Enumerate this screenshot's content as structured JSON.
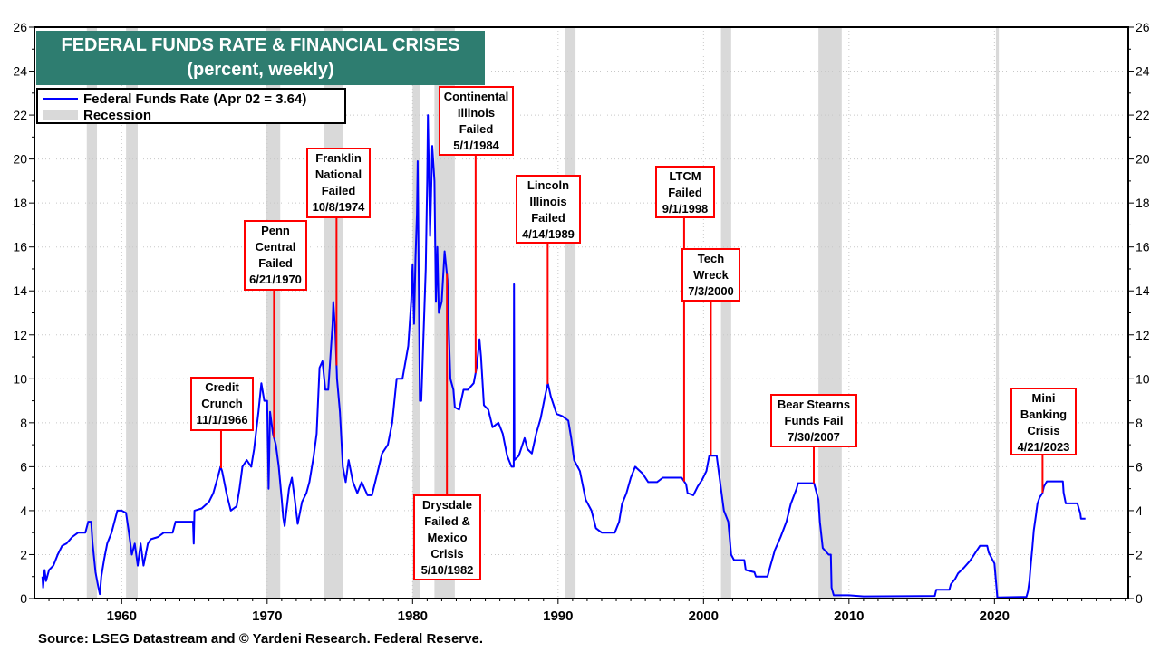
{
  "title": "FEDERAL FUNDS RATE & FINANCIAL CRISES",
  "subtitle": "(percent, weekly)",
  "legend": {
    "series_label": "Federal Funds Rate (Apr 02 = 3.64)",
    "recession_label": "Recession"
  },
  "source": "Source: LSEG Datastream and © Yardeni Research. Federal Reserve.",
  "colors": {
    "series": "#0000ff",
    "recession": "#d9d9d9",
    "title_bg": "#2e7d70",
    "annotation": "#ff0000"
  },
  "chart_data": {
    "type": "line",
    "title": "FEDERAL FUNDS RATE & FINANCIAL CRISES",
    "subtitle": "(percent, weekly)",
    "xlabel": "",
    "ylabel": "",
    "xlim": [
      1954,
      2029.2
    ],
    "ylim": [
      0,
      26
    ],
    "grid": true,
    "legend_position": "top-left",
    "x_ticks": [
      1960,
      1970,
      1980,
      1990,
      2000,
      2010,
      2020
    ],
    "y_ticks": [
      0,
      2,
      4,
      6,
      8,
      10,
      12,
      14,
      16,
      18,
      20,
      22,
      24,
      26
    ],
    "recessions": [
      [
        1957.6,
        1958.3
      ],
      [
        1960.3,
        1961.1
      ],
      [
        1969.9,
        1970.9
      ],
      [
        1973.9,
        1975.2
      ],
      [
        1980.0,
        1980.5
      ],
      [
        1981.5,
        1982.9
      ],
      [
        1990.5,
        1991.2
      ],
      [
        2001.2,
        2001.9
      ],
      [
        2007.9,
        2009.5
      ],
      [
        2020.1,
        2020.3
      ]
    ],
    "series": [
      {
        "name": "Federal Funds Rate (Apr 02 = 3.64)",
        "points": [
          [
            1954.55,
            1.0
          ],
          [
            1954.6,
            0.5
          ],
          [
            1954.7,
            1.3
          ],
          [
            1954.8,
            0.8
          ],
          [
            1955.0,
            1.3
          ],
          [
            1955.3,
            1.5
          ],
          [
            1955.6,
            2.0
          ],
          [
            1955.9,
            2.4
          ],
          [
            1956.2,
            2.5
          ],
          [
            1956.6,
            2.8
          ],
          [
            1957.0,
            3.0
          ],
          [
            1957.5,
            3.0
          ],
          [
            1957.7,
            3.5
          ],
          [
            1957.9,
            3.5
          ],
          [
            1958.0,
            2.5
          ],
          [
            1958.2,
            1.2
          ],
          [
            1958.4,
            0.5
          ],
          [
            1958.5,
            0.2
          ],
          [
            1958.6,
            1.0
          ],
          [
            1958.8,
            1.8
          ],
          [
            1959.0,
            2.5
          ],
          [
            1959.3,
            3.0
          ],
          [
            1959.5,
            3.5
          ],
          [
            1959.7,
            4.0
          ],
          [
            1960.0,
            4.0
          ],
          [
            1960.3,
            3.9
          ],
          [
            1960.5,
            3.0
          ],
          [
            1960.7,
            2.0
          ],
          [
            1960.9,
            2.5
          ],
          [
            1961.1,
            1.5
          ],
          [
            1961.3,
            2.5
          ],
          [
            1961.5,
            1.5
          ],
          [
            1961.8,
            2.5
          ],
          [
            1962.0,
            2.7
          ],
          [
            1962.5,
            2.8
          ],
          [
            1962.9,
            3.0
          ],
          [
            1963.5,
            3.0
          ],
          [
            1963.7,
            3.5
          ],
          [
            1964.5,
            3.5
          ],
          [
            1964.9,
            3.5
          ],
          [
            1964.95,
            2.5
          ],
          [
            1965.0,
            4.0
          ],
          [
            1965.5,
            4.1
          ],
          [
            1966.0,
            4.4
          ],
          [
            1966.3,
            4.8
          ],
          [
            1966.6,
            5.5
          ],
          [
            1966.8,
            6.0
          ],
          [
            1966.9,
            5.8
          ],
          [
            1967.2,
            4.8
          ],
          [
            1967.5,
            4.0
          ],
          [
            1967.9,
            4.2
          ],
          [
            1968.1,
            5.0
          ],
          [
            1968.3,
            6.0
          ],
          [
            1968.6,
            6.3
          ],
          [
            1968.9,
            6.0
          ],
          [
            1969.1,
            6.8
          ],
          [
            1969.4,
            8.5
          ],
          [
            1969.6,
            9.8
          ],
          [
            1969.8,
            9.0
          ],
          [
            1970.0,
            9.0
          ],
          [
            1970.1,
            5.0
          ],
          [
            1970.2,
            8.5
          ],
          [
            1970.4,
            7.5
          ],
          [
            1970.6,
            7.0
          ],
          [
            1970.8,
            6.0
          ],
          [
            1971.0,
            4.5
          ],
          [
            1971.1,
            3.7
          ],
          [
            1971.2,
            3.3
          ],
          [
            1971.5,
            5.0
          ],
          [
            1971.7,
            5.5
          ],
          [
            1971.9,
            4.5
          ],
          [
            1972.1,
            3.4
          ],
          [
            1972.4,
            4.4
          ],
          [
            1972.7,
            4.8
          ],
          [
            1972.9,
            5.3
          ],
          [
            1973.2,
            6.5
          ],
          [
            1973.4,
            7.5
          ],
          [
            1973.6,
            10.5
          ],
          [
            1973.8,
            10.8
          ],
          [
            1974.0,
            9.5
          ],
          [
            1974.2,
            9.5
          ],
          [
            1974.4,
            11.5
          ],
          [
            1974.5,
            12.5
          ],
          [
            1974.55,
            13.5
          ],
          [
            1974.7,
            12.0
          ],
          [
            1974.8,
            10.0
          ],
          [
            1975.0,
            8.5
          ],
          [
            1975.2,
            6.0
          ],
          [
            1975.4,
            5.3
          ],
          [
            1975.6,
            6.3
          ],
          [
            1975.9,
            5.3
          ],
          [
            1976.2,
            4.8
          ],
          [
            1976.5,
            5.3
          ],
          [
            1976.9,
            4.7
          ],
          [
            1977.2,
            4.7
          ],
          [
            1977.5,
            5.5
          ],
          [
            1977.9,
            6.6
          ],
          [
            1978.3,
            7.0
          ],
          [
            1978.6,
            8.0
          ],
          [
            1978.9,
            10.0
          ],
          [
            1979.3,
            10.0
          ],
          [
            1979.7,
            11.5
          ],
          [
            1979.9,
            13.5
          ],
          [
            1980.0,
            15.2
          ],
          [
            1980.1,
            12.5
          ],
          [
            1980.2,
            15.5
          ],
          [
            1980.3,
            17.5
          ],
          [
            1980.35,
            19.9
          ],
          [
            1980.5,
            9.0
          ],
          [
            1980.6,
            9.0
          ],
          [
            1980.9,
            15.0
          ],
          [
            1981.0,
            19.0
          ],
          [
            1981.05,
            22.0
          ],
          [
            1981.2,
            16.5
          ],
          [
            1981.35,
            20.6
          ],
          [
            1981.5,
            19.0
          ],
          [
            1981.6,
            13.5
          ],
          [
            1981.7,
            16.0
          ],
          [
            1981.8,
            13.0
          ],
          [
            1982.0,
            13.5
          ],
          [
            1982.2,
            15.8
          ],
          [
            1982.4,
            14.5
          ],
          [
            1982.5,
            12.0
          ],
          [
            1982.6,
            10.0
          ],
          [
            1982.8,
            9.5
          ],
          [
            1982.9,
            8.7
          ],
          [
            1983.2,
            8.6
          ],
          [
            1983.5,
            9.5
          ],
          [
            1983.8,
            9.5
          ],
          [
            1984.2,
            9.8
          ],
          [
            1984.4,
            10.5
          ],
          [
            1984.6,
            11.8
          ],
          [
            1984.7,
            11.0
          ],
          [
            1984.9,
            8.8
          ],
          [
            1985.2,
            8.6
          ],
          [
            1985.5,
            7.8
          ],
          [
            1985.9,
            8.0
          ],
          [
            1986.2,
            7.5
          ],
          [
            1986.5,
            6.5
          ],
          [
            1986.8,
            6.0
          ],
          [
            1986.95,
            6.0
          ],
          [
            1986.97,
            14.3
          ],
          [
            1987.0,
            6.3
          ],
          [
            1987.3,
            6.5
          ],
          [
            1987.7,
            7.3
          ],
          [
            1987.9,
            6.8
          ],
          [
            1988.2,
            6.6
          ],
          [
            1988.5,
            7.5
          ],
          [
            1988.8,
            8.2
          ],
          [
            1989.1,
            9.2
          ],
          [
            1989.3,
            9.8
          ],
          [
            1989.5,
            9.2
          ],
          [
            1989.9,
            8.4
          ],
          [
            1990.3,
            8.3
          ],
          [
            1990.7,
            8.1
          ],
          [
            1990.9,
            7.3
          ],
          [
            1991.1,
            6.3
          ],
          [
            1991.5,
            5.8
          ],
          [
            1991.9,
            4.5
          ],
          [
            1992.3,
            4.0
          ],
          [
            1992.6,
            3.2
          ],
          [
            1993.0,
            3.0
          ],
          [
            1993.5,
            3.0
          ],
          [
            1993.9,
            3.0
          ],
          [
            1994.2,
            3.5
          ],
          [
            1994.4,
            4.3
          ],
          [
            1994.7,
            4.8
          ],
          [
            1995.0,
            5.5
          ],
          [
            1995.3,
            6.0
          ],
          [
            1995.8,
            5.7
          ],
          [
            1996.2,
            5.3
          ],
          [
            1996.8,
            5.3
          ],
          [
            1997.2,
            5.5
          ],
          [
            1997.8,
            5.5
          ],
          [
            1998.5,
            5.5
          ],
          [
            1998.8,
            5.2
          ],
          [
            1998.9,
            4.8
          ],
          [
            1999.3,
            4.7
          ],
          [
            1999.6,
            5.1
          ],
          [
            1999.9,
            5.4
          ],
          [
            2000.2,
            5.8
          ],
          [
            2000.4,
            6.5
          ],
          [
            2000.9,
            6.5
          ],
          [
            2001.0,
            6.0
          ],
          [
            2001.2,
            5.0
          ],
          [
            2001.4,
            4.0
          ],
          [
            2001.7,
            3.5
          ],
          [
            2001.9,
            2.0
          ],
          [
            2002.1,
            1.75
          ],
          [
            2002.8,
            1.75
          ],
          [
            2002.9,
            1.3
          ],
          [
            2003.5,
            1.2
          ],
          [
            2003.6,
            1.0
          ],
          [
            2004.4,
            1.0
          ],
          [
            2004.6,
            1.5
          ],
          [
            2004.9,
            2.2
          ],
          [
            2005.3,
            2.8
          ],
          [
            2005.7,
            3.5
          ],
          [
            2006.0,
            4.3
          ],
          [
            2006.4,
            5.0
          ],
          [
            2006.5,
            5.25
          ],
          [
            2007.6,
            5.25
          ],
          [
            2007.7,
            5.0
          ],
          [
            2007.9,
            4.5
          ],
          [
            2008.0,
            3.5
          ],
          [
            2008.2,
            2.3
          ],
          [
            2008.6,
            2.0
          ],
          [
            2008.75,
            2.0
          ],
          [
            2008.8,
            0.5
          ],
          [
            2008.95,
            0.15
          ],
          [
            2010.0,
            0.15
          ],
          [
            2011.0,
            0.1
          ],
          [
            2015.9,
            0.12
          ],
          [
            2016.0,
            0.4
          ],
          [
            2016.9,
            0.4
          ],
          [
            2017.0,
            0.65
          ],
          [
            2017.3,
            0.9
          ],
          [
            2017.5,
            1.15
          ],
          [
            2017.9,
            1.4
          ],
          [
            2018.3,
            1.7
          ],
          [
            2018.5,
            1.9
          ],
          [
            2018.8,
            2.2
          ],
          [
            2019.0,
            2.4
          ],
          [
            2019.5,
            2.4
          ],
          [
            2019.6,
            2.1
          ],
          [
            2019.8,
            1.85
          ],
          [
            2020.0,
            1.6
          ],
          [
            2020.2,
            0.05
          ],
          [
            2022.2,
            0.08
          ],
          [
            2022.3,
            0.33
          ],
          [
            2022.4,
            0.8
          ],
          [
            2022.5,
            1.6
          ],
          [
            2022.6,
            2.3
          ],
          [
            2022.7,
            3.1
          ],
          [
            2022.85,
            3.8
          ],
          [
            2022.95,
            4.3
          ],
          [
            2023.1,
            4.6
          ],
          [
            2023.3,
            4.8
          ],
          [
            2023.4,
            5.1
          ],
          [
            2023.6,
            5.33
          ],
          [
            2024.7,
            5.33
          ],
          [
            2024.75,
            4.83
          ],
          [
            2024.9,
            4.33
          ],
          [
            2025.7,
            4.33
          ],
          [
            2025.8,
            4.1
          ],
          [
            2025.9,
            3.9
          ],
          [
            2025.95,
            3.64
          ],
          [
            2026.25,
            3.64
          ]
        ]
      }
    ],
    "annotations": [
      {
        "lines": [
          "Credit",
          "Crunch",
          "11/1/1966"
        ],
        "date": "11/1/1966"
      },
      {
        "lines": [
          "Penn",
          "Central",
          "Failed",
          "6/21/1970"
        ],
        "date": "6/21/1970"
      },
      {
        "lines": [
          "Franklin",
          "National",
          "Failed",
          "10/8/1974"
        ],
        "date": "10/8/1974"
      },
      {
        "lines": [
          "Drysdale",
          "Failed &",
          "Mexico",
          "Crisis",
          "5/10/1982"
        ],
        "date": "5/10/1982"
      },
      {
        "lines": [
          "Continental",
          "Illinois",
          "Failed",
          "5/1/1984"
        ],
        "date": "5/1/1984"
      },
      {
        "lines": [
          "Lincoln",
          "Illinois",
          "Failed",
          "4/14/1989"
        ],
        "date": "4/14/1989"
      },
      {
        "lines": [
          "LTCM",
          "Failed",
          "9/1/1998"
        ],
        "date": "9/1/1998"
      },
      {
        "lines": [
          "Tech",
          "Wreck",
          "7/3/2000"
        ],
        "date": "7/3/2000"
      },
      {
        "lines": [
          "Bear Stearns",
          "Funds Fail",
          "7/30/2007"
        ],
        "date": "7/30/2007"
      },
      {
        "lines": [
          "Mini",
          "Banking",
          "Crisis",
          "4/21/2023"
        ],
        "date": "4/21/2023"
      }
    ]
  }
}
